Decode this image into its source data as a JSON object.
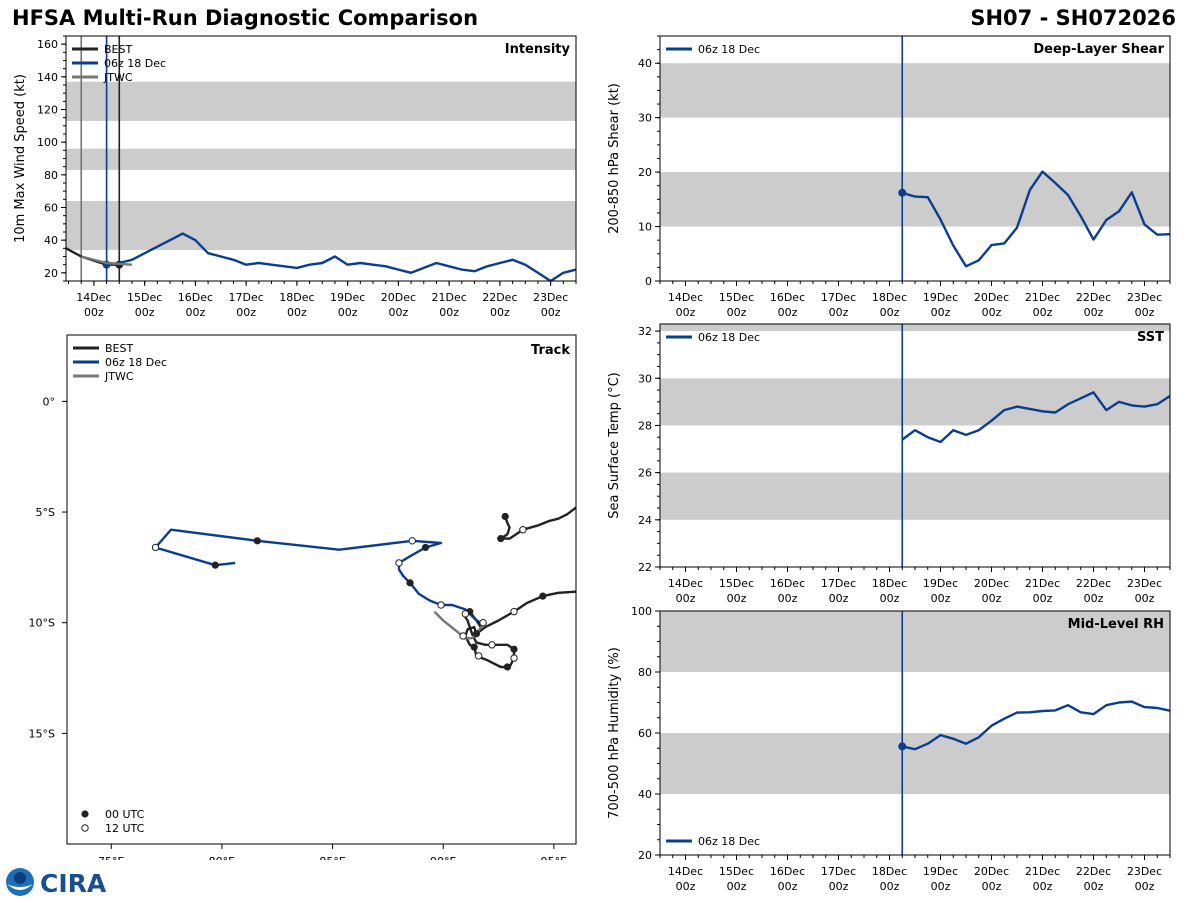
{
  "header": {
    "title_left": "HFSA Multi-Run Diagnostic Comparison",
    "title_right": "SH07 - SH072026"
  },
  "colors": {
    "best": "#222222",
    "run": "#0a3d8f",
    "jtwc": "#777777",
    "band": "#cccccc"
  },
  "logo": {
    "text": "CIRA"
  },
  "chart_data": [
    {
      "id": "intensity",
      "type": "line",
      "title": "Intensity",
      "ylabel": "10m Max Wind Speed (kt)",
      "xlim": [
        -0.55,
        9.5
      ],
      "ylim": [
        15,
        165
      ],
      "yticks": [
        20,
        40,
        60,
        80,
        100,
        120,
        140,
        160
      ],
      "xtick_labels": [
        [
          "14Dec",
          "00z"
        ],
        [
          "15Dec",
          "00z"
        ],
        [
          "16Dec",
          "00z"
        ],
        [
          "17Dec",
          "00z"
        ],
        [
          "18Dec",
          "00z"
        ],
        [
          "19Dec",
          "00z"
        ],
        [
          "20Dec",
          "00z"
        ],
        [
          "21Dec",
          "00z"
        ],
        [
          "22Dec",
          "00z"
        ],
        [
          "23Dec",
          "00z"
        ]
      ],
      "bands": [
        [
          34,
          64
        ],
        [
          83,
          96
        ],
        [
          113,
          137
        ]
      ],
      "vlines": [
        {
          "x": -0.25,
          "color": "jtwc"
        },
        {
          "x": 0.25,
          "color": "run"
        },
        {
          "x": 0.5,
          "color": "best"
        }
      ],
      "legend": [
        "BEST",
        "06z 18 Dec",
        "JTWC"
      ],
      "series": [
        {
          "name": "BEST",
          "color": "best",
          "x": [
            -0.55,
            -0.25,
            0.25,
            0.5
          ],
          "y": [
            35,
            30,
            25,
            25
          ],
          "marker_x": [
            0.5
          ],
          "marker_y": [
            25
          ]
        },
        {
          "name": "06z 18 Dec",
          "color": "run",
          "x": [
            0.25,
            0.5,
            0.75,
            1.0,
            1.25,
            1.5,
            1.75,
            2.0,
            2.25,
            2.5,
            2.75,
            3.0,
            3.25,
            3.5,
            3.75,
            4.0,
            4.25,
            4.5,
            4.75,
            5.0,
            5.25,
            5.5,
            5.75,
            6.0,
            6.25,
            6.5,
            6.75,
            7.0,
            7.25,
            7.5,
            7.75,
            8.0,
            8.25,
            8.5,
            8.75,
            9.0,
            9.25,
            9.5
          ],
          "y": [
            25,
            26,
            28,
            32,
            36,
            40,
            44,
            40,
            32,
            30,
            28,
            25,
            26,
            25,
            24,
            23,
            25,
            26,
            30,
            25,
            26,
            25,
            24,
            22,
            20,
            23,
            26,
            24,
            22,
            21,
            24,
            26,
            28,
            25,
            20,
            15,
            20,
            22
          ],
          "marker_x": [
            0.25
          ],
          "marker_y": [
            25
          ]
        },
        {
          "name": "JTWC",
          "color": "jtwc",
          "x": [
            -0.25,
            0.25,
            0.75
          ],
          "y": [
            30,
            26,
            25
          ]
        }
      ]
    },
    {
      "id": "shear",
      "type": "line",
      "title": "Deep-Layer Shear",
      "ylabel": "200-850 hPa Shear (kt)",
      "xlim": [
        -4.5,
        5.5
      ],
      "ylim": [
        0,
        45
      ],
      "yticks": [
        0,
        10,
        20,
        30,
        40
      ],
      "xtick_labels": [
        [
          "14Dec",
          "00z"
        ],
        [
          "15Dec",
          "00z"
        ],
        [
          "16Dec",
          "00z"
        ],
        [
          "17Dec",
          "00z"
        ],
        [
          "18Dec",
          "00z"
        ],
        [
          "19Dec",
          "00z"
        ],
        [
          "20Dec",
          "00z"
        ],
        [
          "21Dec",
          "00z"
        ],
        [
          "22Dec",
          "00z"
        ],
        [
          "23Dec",
          "00z"
        ]
      ],
      "bands": [
        [
          10,
          20
        ],
        [
          30,
          40
        ]
      ],
      "vlines": [
        {
          "x": 0.25,
          "color": "run"
        }
      ],
      "legend": [
        "06z 18 Dec"
      ],
      "series": [
        {
          "name": "06z 18 Dec",
          "color": "run",
          "x": [
            0.25,
            0.5,
            0.75,
            1.0,
            1.25,
            1.5,
            1.75,
            2.0,
            2.25,
            2.5,
            2.75,
            3.0,
            3.25,
            3.5,
            3.75,
            4.0,
            4.25,
            4.5,
            4.75,
            5.0,
            5.25,
            5.5
          ],
          "y": [
            16.2,
            15.5,
            15.4,
            11.3,
            6.5,
            2.7,
            3.8,
            6.6,
            6.9,
            9.8,
            16.7,
            20.1,
            18,
            15.8,
            11.9,
            7.6,
            11.2,
            12.8,
            16.3,
            10.4,
            8.5,
            8.6
          ],
          "marker_x": [
            0.25
          ],
          "marker_y": [
            16.2
          ]
        }
      ]
    },
    {
      "id": "sst",
      "type": "line",
      "title": "SST",
      "ylabel": "Sea Surface Temp (°C)",
      "xlim": [
        -4.5,
        5.5
      ],
      "ylim": [
        22,
        32.3
      ],
      "yticks": [
        22,
        24,
        26,
        28,
        30,
        32
      ],
      "xtick_labels": [
        [
          "14Dec",
          "00z"
        ],
        [
          "15Dec",
          "00z"
        ],
        [
          "16Dec",
          "00z"
        ],
        [
          "17Dec",
          "00z"
        ],
        [
          "18Dec",
          "00z"
        ],
        [
          "19Dec",
          "00z"
        ],
        [
          "20Dec",
          "00z"
        ],
        [
          "21Dec",
          "00z"
        ],
        [
          "22Dec",
          "00z"
        ],
        [
          "23Dec",
          "00z"
        ]
      ],
      "bands": [
        [
          24,
          26
        ],
        [
          28,
          30
        ],
        [
          32,
          34
        ]
      ],
      "vlines": [
        {
          "x": 0.25,
          "color": "run"
        }
      ],
      "legend": [
        "06z 18 Dec"
      ],
      "series": [
        {
          "name": "06z 18 Dec",
          "color": "run",
          "x": [
            0.25,
            0.5,
            0.75,
            1.0,
            1.25,
            1.5,
            1.75,
            2.0,
            2.25,
            2.5,
            2.75,
            3.0,
            3.25,
            3.5,
            3.75,
            4.0,
            4.25,
            4.5,
            4.75,
            5.0,
            5.25,
            5.5
          ],
          "y": [
            27.4,
            27.8,
            27.5,
            27.3,
            27.8,
            27.6,
            27.8,
            28.2,
            28.65,
            28.8,
            28.7,
            28.6,
            28.55,
            28.9,
            29.15,
            29.4,
            28.65,
            29,
            28.85,
            28.8,
            28.9,
            29.25
          ]
        }
      ]
    },
    {
      "id": "rh",
      "type": "line",
      "title": "Mid-Level RH",
      "ylabel": "700-500 hPa Humidity (%)",
      "xlim": [
        -4.5,
        5.5
      ],
      "ylim": [
        20,
        100
      ],
      "yticks": [
        20,
        40,
        60,
        80,
        100
      ],
      "xtick_labels": [
        [
          "14Dec",
          "00z"
        ],
        [
          "15Dec",
          "00z"
        ],
        [
          "16Dec",
          "00z"
        ],
        [
          "17Dec",
          "00z"
        ],
        [
          "18Dec",
          "00z"
        ],
        [
          "19Dec",
          "00z"
        ],
        [
          "20Dec",
          "00z"
        ],
        [
          "21Dec",
          "00z"
        ],
        [
          "22Dec",
          "00z"
        ],
        [
          "23Dec",
          "00z"
        ]
      ],
      "bands": [
        [
          40,
          60
        ],
        [
          80,
          100
        ]
      ],
      "vlines": [
        {
          "x": 0.25,
          "color": "run"
        }
      ],
      "legend": [
        "06z 18 Dec"
      ],
      "series": [
        {
          "name": "06z 18 Dec",
          "color": "run",
          "x": [
            0.25,
            0.5,
            0.75,
            1.0,
            1.25,
            1.5,
            1.75,
            2.0,
            2.25,
            2.5,
            2.75,
            3.0,
            3.25,
            3.5,
            3.75,
            4.0,
            4.25,
            4.5,
            4.75,
            5.0,
            5.25,
            5.5
          ],
          "y": [
            55.6,
            54.7,
            56.5,
            59.3,
            58.1,
            56.5,
            58.6,
            62.4,
            64.7,
            66.7,
            66.8,
            67.2,
            67.4,
            69.1,
            66.8,
            66.2,
            69.1,
            70,
            70.3,
            68.5,
            68.2,
            67.3
          ],
          "marker_x": [
            0.25
          ],
          "marker_y": [
            55.6
          ]
        }
      ]
    },
    {
      "id": "track",
      "type": "scatter",
      "title": "Track",
      "xlim": [
        73,
        96
      ],
      "ylim": [
        -20,
        3
      ],
      "xticks": [
        75,
        80,
        85,
        90,
        95
      ],
      "xtick_labels": [
        "75°E",
        "80°E",
        "85°E",
        "90°E",
        "95°E"
      ],
      "yticks": [
        0,
        -5,
        -10,
        -15
      ],
      "ytick_labels": [
        "0°",
        "5°S",
        "10°S",
        "15°S"
      ],
      "legend": [
        "BEST",
        "06z 18 Dec",
        "JTWC"
      ],
      "marker_legend": [
        "00 UTC",
        "12 UTC"
      ],
      "tracks": [
        {
          "name": "BEST",
          "color": "best",
          "points": [
            [
              96,
              -8.6
            ],
            [
              95.2,
              -8.65
            ],
            [
              94.5,
              -8.8
            ],
            [
              93.8,
              -9.1
            ],
            [
              93.2,
              -9.5
            ],
            [
              92.5,
              -9.9
            ],
            [
              91.9,
              -10.2
            ],
            [
              91.5,
              -10.5
            ],
            [
              91.4,
              -10.2
            ],
            [
              91.1,
              -10.3
            ],
            [
              91,
              -10.6
            ],
            [
              91.2,
              -11
            ],
            [
              91.4,
              -11.1
            ],
            [
              91.5,
              -11.5
            ],
            [
              92,
              -11.7
            ],
            [
              92.6,
              -12
            ],
            [
              93,
              -12
            ],
            [
              93.2,
              -11.6
            ],
            [
              93.2,
              -11.2
            ],
            [
              92.9,
              -11
            ],
            [
              92.2,
              -11
            ],
            [
              91.9,
              -11
            ],
            [
              91.5,
              -10.9
            ],
            [
              91.3,
              -10.5
            ],
            [
              91.1,
              -9.9
            ],
            [
              90.9,
              -9.6
            ],
            [
              91.2,
              -9.5
            ],
            [
              91.5,
              -9.9
            ],
            [
              91.7,
              -10.2
            ]
          ],
          "filled": [
            [
              94.5,
              -8.8
            ],
            [
              91.5,
              -10.5
            ],
            [
              92.9,
              -12
            ],
            [
              93.2,
              -11.2
            ],
            [
              91.4,
              -11.1
            ],
            [
              91.2,
              -9.5
            ]
          ],
          "open": [
            [
              93.2,
              -9.5
            ],
            [
              91.8,
              -10
            ],
            [
              90.9,
              -10.6
            ],
            [
              91.6,
              -11.5
            ],
            [
              93.2,
              -11.6
            ],
            [
              92.2,
              -11
            ],
            [
              91,
              -9.6
            ]
          ]
        },
        {
          "name": "BEST",
          "color": "best",
          "points": [
            [
              96,
              -4.8
            ],
            [
              95.6,
              -5.1
            ],
            [
              95.2,
              -5.3
            ],
            [
              94.8,
              -5.4
            ],
            [
              94.3,
              -5.6
            ],
            [
              93.6,
              -5.8
            ],
            [
              93.3,
              -6
            ],
            [
              93,
              -6.2
            ],
            [
              92.8,
              -6.2
            ],
            [
              92.6,
              -6.2
            ],
            [
              92.9,
              -6
            ],
            [
              93,
              -5.7
            ],
            [
              92.9,
              -5.5
            ],
            [
              92.8,
              -5.2
            ]
          ],
          "filled": [
            [
              92.6,
              -6.2
            ],
            [
              92.8,
              -5.2
            ]
          ],
          "open": [
            [
              93.6,
              -5.8
            ]
          ]
        },
        {
          "name": "06z 18 Dec",
          "color": "run",
          "points": [
            [
              91.8,
              -10.1
            ],
            [
              91.4,
              -9.8
            ],
            [
              91,
              -9.4
            ],
            [
              90.4,
              -9.2
            ],
            [
              89.9,
              -9.2
            ],
            [
              89.4,
              -9
            ],
            [
              88.9,
              -8.7
            ],
            [
              88.5,
              -8.2
            ],
            [
              88.2,
              -7.9
            ],
            [
              88,
              -7.6
            ],
            [
              88,
              -7.3
            ],
            [
              88.5,
              -7
            ],
            [
              89.2,
              -6.6
            ],
            [
              89.9,
              -6.4
            ],
            [
              88.6,
              -6.3
            ],
            [
              85.3,
              -6.7
            ],
            [
              81.6,
              -6.3
            ],
            [
              77.7,
              -5.8
            ],
            [
              77,
              -6.6
            ],
            [
              79.7,
              -7.4
            ],
            [
              80.6,
              -7.3
            ]
          ],
          "filled": [
            [
              88.5,
              -8.2
            ],
            [
              89.2,
              -6.6
            ],
            [
              81.6,
              -6.3
            ],
            [
              79.7,
              -7.4
            ]
          ],
          "open": [
            [
              89.9,
              -9.2
            ],
            [
              88,
              -7.3
            ],
            [
              88.6,
              -6.3
            ],
            [
              77,
              -6.6
            ]
          ]
        },
        {
          "name": "JTWC",
          "color": "jtwc",
          "points": [
            [
              91.8,
              -10.1
            ],
            [
              91.3,
              -10.7
            ],
            [
              91,
              -10.7
            ],
            [
              90.5,
              -10.3
            ],
            [
              90,
              -9.9
            ],
            [
              89.6,
              -9.5
            ]
          ]
        }
      ]
    }
  ]
}
